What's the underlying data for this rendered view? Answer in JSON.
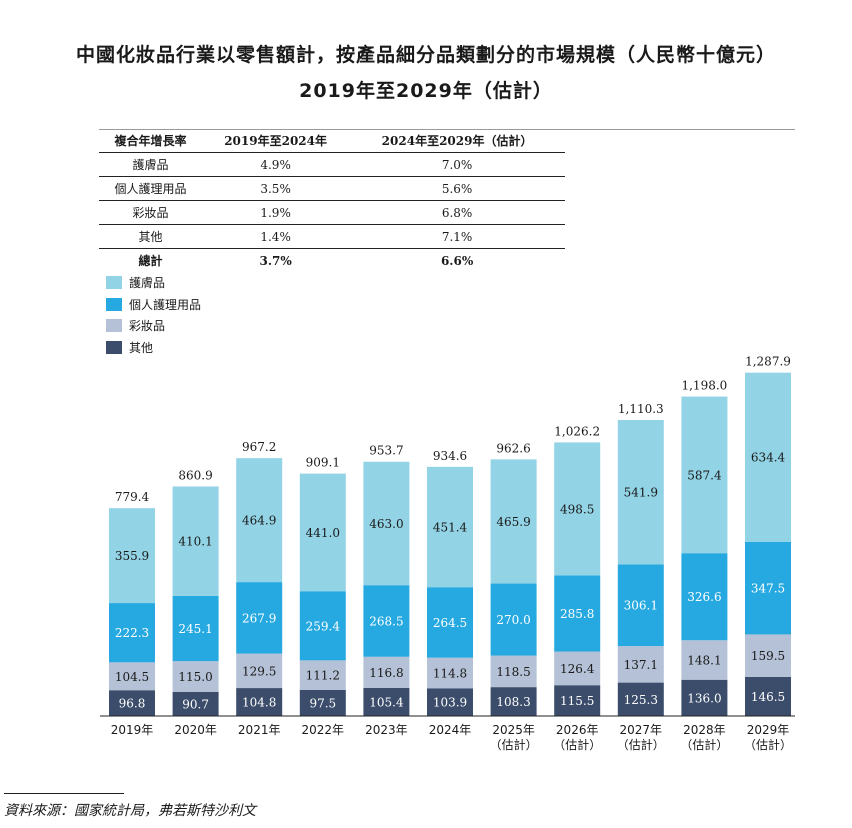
{
  "title_line1": "中國化妝品行業以零售額計，按產品細分品類劃分的市場規模（人民幣十億元）",
  "title_line2": "2019年至2029年（估計）",
  "cagr_table": {
    "headers": [
      "複合年增長率",
      "2019年至2024年",
      "2024年至2029年（估計）"
    ],
    "rows": [
      [
        "護膚品",
        "4.9%",
        "7.0%"
      ],
      [
        "個人護理用品",
        "3.5%",
        "5.6%"
      ],
      [
        "彩妝品",
        "1.9%",
        "6.8%"
      ],
      [
        "其他",
        "1.4%",
        "7.1%"
      ]
    ],
    "total": [
      "總計",
      "3.7%",
      "6.6%"
    ]
  },
  "chart_data": {
    "type": "bar",
    "stacked": true,
    "title": "中國化妝品行業以零售額計，按產品細分品類劃分的市場規模（人民幣十億元）",
    "categories": [
      "2019年",
      "2020年",
      "2021年",
      "2022年",
      "2023年",
      "2024年",
      "2025年（估計）",
      "2026年（估計）",
      "2027年（估計）",
      "2028年（估計）",
      "2029年（估計）"
    ],
    "category_lines": [
      [
        "2019年"
      ],
      [
        "2020年"
      ],
      [
        "2021年"
      ],
      [
        "2022年"
      ],
      [
        "2023年"
      ],
      [
        "2024年"
      ],
      [
        "2025年",
        "（估計）"
      ],
      [
        "2026年",
        "（估計）"
      ],
      [
        "2027年",
        "（估計）"
      ],
      [
        "2028年",
        "（估計）"
      ],
      [
        "2029年",
        "（估計）"
      ]
    ],
    "series": [
      {
        "name": "其他",
        "color": "#3b4d6b",
        "values": [
          96.8,
          90.7,
          104.8,
          97.5,
          105.4,
          103.9,
          108.3,
          115.5,
          125.3,
          136.0,
          146.5
        ]
      },
      {
        "name": "彩妝品",
        "color": "#b4c1d6",
        "values": [
          104.5,
          115.0,
          129.5,
          111.2,
          116.8,
          114.8,
          118.5,
          126.4,
          137.1,
          148.1,
          159.5
        ]
      },
      {
        "name": "個人護理用品",
        "color": "#26a9e0",
        "values": [
          222.3,
          245.1,
          267.9,
          259.4,
          268.5,
          264.5,
          270.0,
          285.8,
          306.1,
          326.6,
          347.5
        ]
      },
      {
        "name": "護膚品",
        "color": "#92d3e5",
        "values": [
          355.9,
          410.1,
          464.9,
          441.0,
          463.0,
          451.4,
          465.9,
          498.5,
          541.9,
          587.4,
          634.4
        ]
      }
    ],
    "totals": [
      "779.4",
      "860.9",
      "967.2",
      "909.1",
      "953.7",
      "934.6",
      "962.6",
      "1,026.2",
      "1,110.3",
      "1,198.0",
      "1,287.9"
    ],
    "legend_order": [
      "護膚品",
      "個人護理用品",
      "彩妝品",
      "其他"
    ],
    "ylim": [
      0,
      1300
    ],
    "xlabel": "",
    "ylabel": ""
  },
  "source": "資料來源：國家統計局，弗若斯特沙利文"
}
